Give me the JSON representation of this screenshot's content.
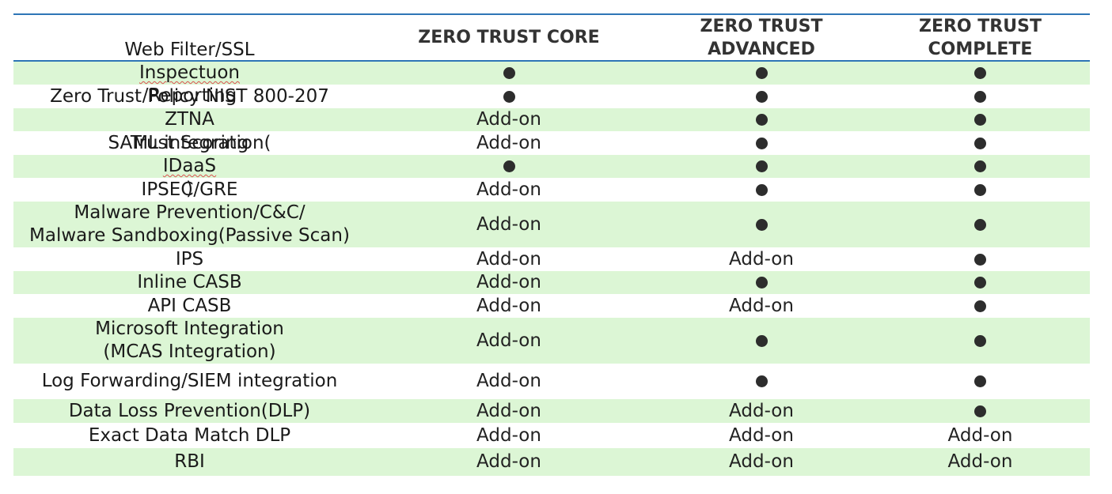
{
  "columns": [
    "",
    "ZERO TRUST CORE",
    "ZERO TRUST\nADVANCED",
    "ZERO TRUST\nCOMPLETE"
  ],
  "columns_lines": [
    [],
    [
      "ZERO TRUST CORE"
    ],
    [
      "ZERO TRUST",
      "ADVANCED"
    ],
    [
      "ZERO TRUST",
      "COMPLETE"
    ]
  ],
  "legend": {
    "included": "●",
    "addon": "Add-on"
  },
  "colors": {
    "shade": "#dcf6d5",
    "rule": "#2e75b6",
    "dot": "#2d2d2d"
  },
  "rows": [
    {
      "feature": [
        "Web Filter/SSL Inspectuon/Reporting"
      ],
      "core": "included",
      "advanced": "included",
      "complete": "included"
    },
    {
      "feature": [
        "Zero Trust Policy NIST 800-207"
      ],
      "core": "included",
      "advanced": "included",
      "complete": "included"
    },
    {
      "feature": [
        "ZTNA"
      ],
      "core": "Add-on",
      "advanced": "included",
      "complete": "included"
    },
    {
      "feature": [
        "Trust Scoring"
      ],
      "core": "Add-on",
      "advanced": "included",
      "complete": "included"
    },
    {
      "feature": [
        "SAML integration(IDaaS)"
      ],
      "core": "included",
      "advanced": "included",
      "complete": "included"
    },
    {
      "feature": [
        "IPSEC/GRE"
      ],
      "core": "Add-on",
      "advanced": "included",
      "complete": "included"
    },
    {
      "feature": [
        "Malware Prevention/C&C/",
        "Malware Sandboxing(Passive Scan)"
      ],
      "core": "Add-on",
      "advanced": "included",
      "complete": "included"
    },
    {
      "feature": [
        "IPS"
      ],
      "core": "Add-on",
      "advanced": "Add-on",
      "complete": "included"
    },
    {
      "feature": [
        "Inline CASB"
      ],
      "core": "Add-on",
      "advanced": "included",
      "complete": "included"
    },
    {
      "feature": [
        "API CASB"
      ],
      "core": "Add-on",
      "advanced": "Add-on",
      "complete": "included"
    },
    {
      "feature": [
        "Microsoft Integration",
        "(MCAS Integration)"
      ],
      "core": "Add-on",
      "advanced": "included",
      "complete": "included"
    },
    {
      "feature": [
        "Log Forwarding/SIEM integration"
      ],
      "core": "Add-on",
      "advanced": "included",
      "complete": "included"
    },
    {
      "feature": [
        "Data Loss Prevention(DLP)"
      ],
      "core": "Add-on",
      "advanced": "Add-on",
      "complete": "included"
    },
    {
      "feature": [
        "Exact Data Match DLP"
      ],
      "core": "Add-on",
      "advanced": "Add-on",
      "complete": "Add-on"
    },
    {
      "feature": [
        "RBI"
      ],
      "core": "Add-on",
      "advanced": "Add-on",
      "complete": "Add-on"
    }
  ]
}
